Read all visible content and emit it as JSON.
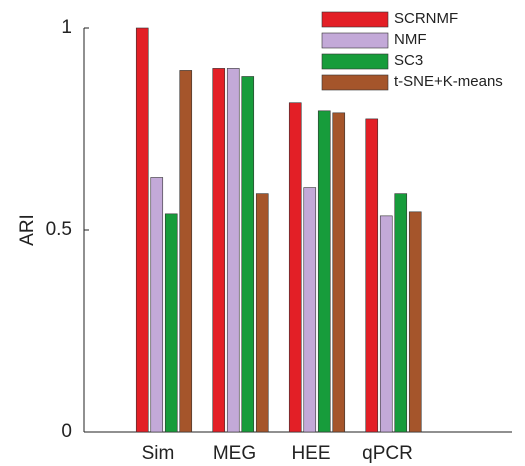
{
  "chart_data": {
    "type": "bar",
    "y_label": "ARI",
    "categories": [
      "Sim",
      "MEG",
      "HEE",
      "qPCR"
    ],
    "series": [
      {
        "name": "SCRNMF",
        "color": "#e31f26",
        "values": [
          1.0,
          0.9,
          0.815,
          0.775
        ]
      },
      {
        "name": "NMF",
        "color": "#c3a9d8",
        "values": [
          0.63,
          0.9,
          0.605,
          0.535
        ]
      },
      {
        "name": "SC3",
        "color": "#179c3b",
        "values": [
          0.54,
          0.88,
          0.795,
          0.59
        ]
      },
      {
        "name": "t-SNE+K-means",
        "color": "#a5552b",
        "values": [
          0.895,
          0.59,
          0.79,
          0.545
        ]
      }
    ],
    "ylim": [
      0,
      1
    ],
    "yticks": [
      0,
      0.5,
      1
    ]
  }
}
